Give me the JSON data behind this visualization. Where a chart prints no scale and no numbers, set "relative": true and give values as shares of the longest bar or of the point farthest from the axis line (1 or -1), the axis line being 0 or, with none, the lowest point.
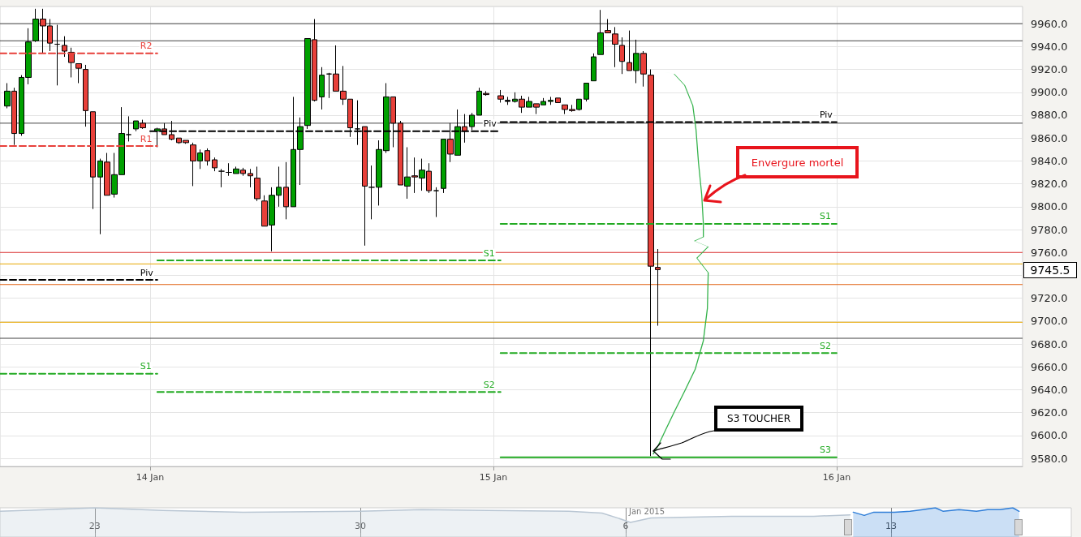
{
  "chart_data": [
    {
      "type": "candlestick",
      "marker": "none",
      "grid": true,
      "xlim": [
        "2015-01-13T13:30",
        "2015-01-16T13:00"
      ],
      "xticks": [
        {
          "value": "2015-01-14",
          "label": "14 Jan"
        },
        {
          "value": "2015-01-15",
          "label": "15 Jan"
        },
        {
          "value": "2015-01-16",
          "label": "16 Jan"
        }
      ],
      "ylim": [
        9573,
        9975
      ],
      "yticks": [
        {
          "value": 9580,
          "label": "9580.0"
        },
        {
          "value": 9600,
          "label": "9600.0"
        },
        {
          "value": 9620,
          "label": "9620.0"
        },
        {
          "value": 9640,
          "label": "9640.0"
        },
        {
          "value": 9660,
          "label": "9660.0"
        },
        {
          "value": 9680,
          "label": "9680.0"
        },
        {
          "value": 9700,
          "label": "9700.0"
        },
        {
          "value": 9720,
          "label": "9720.0"
        },
        {
          "value": 9740,
          "label": null
        },
        {
          "value": 9760,
          "label": "9760.0"
        },
        {
          "value": 9780,
          "label": "9780.0"
        },
        {
          "value": 9800,
          "label": "9800.0"
        },
        {
          "value": 9820,
          "label": "9820.0"
        },
        {
          "value": 9840,
          "label": "9840.0"
        },
        {
          "value": 9860,
          "label": "9860.0"
        },
        {
          "value": 9880,
          "label": "9880.0"
        },
        {
          "value": 9900,
          "label": "9900.0"
        },
        {
          "value": 9920,
          "label": "9920.0"
        },
        {
          "value": 9940,
          "label": "9940.0"
        },
        {
          "value": 9960,
          "label": "9960.0"
        }
      ],
      "x": [
        "2015-01-13T14:00",
        "2015-01-13T14:30",
        "2015-01-13T15:00",
        "2015-01-13T15:30",
        "2015-01-13T16:00",
        "2015-01-13T16:30",
        "2015-01-13T17:00",
        "2015-01-13T17:30",
        "2015-01-13T18:00",
        "2015-01-13T18:30",
        "2015-01-13T19:00",
        "2015-01-13T19:30",
        "2015-01-13T20:00",
        "2015-01-13T20:30",
        "2015-01-13T21:00",
        "2015-01-13T21:30",
        "2015-01-13T22:00",
        "2015-01-13T22:30",
        "2015-01-13T23:00",
        "2015-01-13T23:30",
        "2015-01-14T00:30",
        "2015-01-14T01:00",
        "2015-01-14T01:30",
        "2015-01-14T02:00",
        "2015-01-14T02:30",
        "2015-01-14T03:00",
        "2015-01-14T03:30",
        "2015-01-14T04:00",
        "2015-01-14T04:30",
        "2015-01-14T05:00",
        "2015-01-14T05:30",
        "2015-01-14T06:00",
        "2015-01-14T06:30",
        "2015-01-14T07:00",
        "2015-01-14T07:30",
        "2015-01-14T08:00",
        "2015-01-14T08:30",
        "2015-01-14T09:00",
        "2015-01-14T09:30",
        "2015-01-14T10:00",
        "2015-01-14T10:30",
        "2015-01-14T11:00",
        "2015-01-14T11:30",
        "2015-01-14T12:00",
        "2015-01-14T12:30",
        "2015-01-14T13:00",
        "2015-01-14T13:30",
        "2015-01-14T14:00",
        "2015-01-14T14:30",
        "2015-01-14T15:00",
        "2015-01-14T15:30",
        "2015-01-14T16:00",
        "2015-01-14T16:30",
        "2015-01-14T17:00",
        "2015-01-14T17:30",
        "2015-01-14T18:00",
        "2015-01-14T18:30",
        "2015-01-14T19:00",
        "2015-01-14T19:30",
        "2015-01-14T20:00",
        "2015-01-14T20:30",
        "2015-01-14T21:00",
        "2015-01-14T21:30",
        "2015-01-14T22:00",
        "2015-01-14T22:30",
        "2015-01-14T23:00",
        "2015-01-14T23:30",
        "2015-01-15T00:30",
        "2015-01-15T01:00",
        "2015-01-15T01:30",
        "2015-01-15T02:00",
        "2015-01-15T02:30",
        "2015-01-15T03:00",
        "2015-01-15T03:30",
        "2015-01-15T04:00",
        "2015-01-15T04:30",
        "2015-01-15T05:00",
        "2015-01-15T05:30",
        "2015-01-15T06:00",
        "2015-01-15T06:30",
        "2015-01-15T07:00",
        "2015-01-15T07:30",
        "2015-01-15T08:00",
        "2015-01-15T08:30",
        "2015-01-15T09:00",
        "2015-01-15T09:30",
        "2015-01-15T10:00",
        "2015-01-15T10:30",
        "2015-01-15T11:00",
        "2015-01-15T11:30"
      ],
      "ohlc": [
        [
          9888,
          9908,
          9886,
          9901
        ],
        [
          9901,
          9904,
          9854,
          9864
        ],
        [
          9864,
          9915,
          9862,
          9913
        ],
        [
          9913,
          9956,
          9907,
          9944
        ],
        [
          9945,
          9973,
          9944,
          9964
        ],
        [
          9964,
          9973,
          9934,
          9958
        ],
        [
          9958,
          9964,
          9936,
          9943
        ],
        [
          9942,
          9959,
          9906,
          9942
        ],
        [
          9941,
          9949,
          9931,
          9936
        ],
        [
          9935,
          9939,
          9913,
          9926
        ],
        [
          9925,
          9925,
          9908,
          9921
        ],
        [
          9920,
          9924,
          9870,
          9884
        ],
        [
          9883,
          9883,
          9798,
          9826
        ],
        [
          9826,
          9842,
          9776,
          9840
        ],
        [
          9839,
          9847,
          9810,
          9810
        ],
        [
          9811,
          9847,
          9808,
          9828
        ],
        [
          9828,
          9887,
          9828,
          9864
        ],
        [
          9863,
          9879,
          9857,
          9863
        ],
        [
          9868,
          9875,
          9866,
          9875
        ],
        [
          9873,
          9876,
          9868,
          9869
        ],
        [
          9866,
          9869,
          9852,
          9868
        ],
        [
          9868,
          9873,
          9863,
          9863
        ],
        [
          9863,
          9875,
          9858,
          9859
        ],
        [
          9860,
          9860,
          9855,
          9856
        ],
        [
          9858,
          9858,
          9855,
          9856
        ],
        [
          9854,
          9856,
          9818,
          9840
        ],
        [
          9840,
          9850,
          9833,
          9847
        ],
        [
          9849,
          9851,
          9836,
          9840
        ],
        [
          9841,
          9843,
          9831,
          9834
        ],
        [
          9831,
          9833,
          9817,
          9831
        ],
        [
          9830,
          9838,
          9827,
          9830
        ],
        [
          9829,
          9835,
          9829,
          9833
        ],
        [
          9832,
          9834,
          9827,
          9829
        ],
        [
          9829,
          9833,
          9817,
          9827
        ],
        [
          9825,
          9835,
          9805,
          9807
        ],
        [
          9805,
          9810,
          9783,
          9783
        ],
        [
          9784,
          9817,
          9761,
          9810
        ],
        [
          9810,
          9835,
          9800,
          9817
        ],
        [
          9817,
          9839,
          9789,
          9800
        ],
        [
          9800,
          9896,
          9800,
          9850
        ],
        [
          9850,
          9878,
          9819,
          9870
        ],
        [
          9871,
          9947,
          9868,
          9947
        ],
        [
          9946,
          9964,
          9892,
          9893
        ],
        [
          9896,
          9922,
          9885,
          9915
        ],
        [
          9916,
          9917,
          9895,
          9916
        ],
        [
          9916,
          9941,
          9901,
          9901
        ],
        [
          9901,
          9923,
          9889,
          9894
        ],
        [
          9894,
          9894,
          9861,
          9869
        ],
        [
          9868,
          9893,
          9854,
          9868
        ],
        [
          9870,
          9870,
          9766,
          9818
        ],
        [
          9817,
          9836,
          9789,
          9817
        ],
        [
          9817,
          9858,
          9801,
          9850
        ],
        [
          9849,
          9908,
          9847,
          9896
        ],
        [
          9896,
          9896,
          9852,
          9873
        ],
        [
          9873,
          9875,
          9819,
          9819
        ],
        [
          9818,
          9852,
          9807,
          9826
        ],
        [
          9827,
          9843,
          9812,
          9826
        ],
        [
          9825,
          9842,
          9814,
          9832
        ],
        [
          9831,
          9838,
          9812,
          9814
        ],
        [
          9814,
          9817,
          9791,
          9814
        ],
        [
          9816,
          9859,
          9812,
          9859
        ],
        [
          9859,
          9873,
          9839,
          9846
        ],
        [
          9845,
          9885,
          9845,
          9870
        ],
        [
          9870,
          9881,
          9856,
          9866
        ],
        [
          9870,
          9882,
          9867,
          9880
        ],
        [
          9880,
          9904,
          9880,
          9901
        ],
        [
          9899,
          9901,
          9897,
          9898
        ],
        [
          9897,
          9902,
          9891,
          9894
        ],
        [
          9893,
          9896,
          9889,
          9892
        ],
        [
          9892,
          9900,
          9891,
          9894
        ],
        [
          9894,
          9897,
          9882,
          9887
        ],
        [
          9887,
          9896,
          9887,
          9892
        ],
        [
          9890,
          9890,
          9881,
          9887
        ],
        [
          9889,
          9895,
          9889,
          9892
        ],
        [
          9892,
          9896,
          9889,
          9893
        ],
        [
          9895,
          9895,
          9891,
          9891
        ],
        [
          9889,
          9889,
          9881,
          9885
        ],
        [
          9885,
          9889,
          9883,
          9884
        ],
        [
          9885,
          9894,
          9884,
          9894
        ],
        [
          9894,
          9908,
          9892,
          9908
        ],
        [
          9910,
          9934,
          9910,
          9931
        ],
        [
          9933,
          9972,
          9933,
          9952
        ],
        [
          9954,
          9964,
          9952,
          9952
        ],
        [
          9951,
          9957,
          9922,
          9942
        ],
        [
          9941,
          9948,
          9916,
          9927
        ],
        [
          9926,
          9954,
          9919,
          9919
        ],
        [
          9919,
          9946,
          9908,
          9934
        ],
        [
          9934,
          9936,
          9905,
          9916
        ],
        [
          9915,
          9920,
          9582,
          9748
        ],
        [
          9747,
          9763,
          9696,
          9745
        ]
      ],
      "colors": [
        "#00a000",
        "#e8403a",
        "#00a000",
        "#00a000",
        "#00a000",
        "#e8403a",
        "#e8403a",
        "#000000",
        "#e8403a",
        "#e8403a",
        "#e8403a",
        "#e8403a",
        "#e8403a",
        "#00a000",
        "#e8403a",
        "#00a000",
        "#00a000",
        "#000000",
        "#00a000",
        "#e8403a",
        "#00a000",
        "#e8403a",
        "#e8403a",
        "#e8403a",
        "#e8403a",
        "#e8403a",
        "#00a000",
        "#e8403a",
        "#e8403a",
        "#000000",
        "#000000",
        "#00a000",
        "#e8403a",
        "#e8403a",
        "#e8403a",
        "#e8403a",
        "#00a000",
        "#00a000",
        "#e8403a",
        "#00a000",
        "#00a000",
        "#00a000",
        "#e8403a",
        "#00a000",
        "#000000",
        "#e8403a",
        "#e8403a",
        "#e8403a",
        "#000000",
        "#e8403a",
        "#000000",
        "#00a000",
        "#00a000",
        "#e8403a",
        "#e8403a",
        "#00a000",
        "#e8403a",
        "#00a000",
        "#e8403a",
        "#000000",
        "#00a000",
        "#e8403a",
        "#00a000",
        "#e8403a",
        "#00a000",
        "#00a000",
        "#e8403a",
        "#e8403a",
        "#000000",
        "#00a000",
        "#e8403a",
        "#00a000",
        "#e8403a",
        "#00a000",
        "#00a000",
        "#e8403a",
        "#e8403a",
        "#e8403a",
        "#00a000",
        "#00a000",
        "#00a000",
        "#00a000",
        "#e8403a",
        "#e8403a",
        "#e8403a",
        "#e8403a",
        "#00a000",
        "#e8403a",
        "#e8403a",
        "#e8403a"
      ],
      "series": [
        {
          "type": "line",
          "name": "R2",
          "color": "#e8403a",
          "line_style": "dashed",
          "x": [
            "2015-01-13T13:30",
            "2015-01-14T00:30"
          ],
          "values": [
            9934,
            9934
          ]
        },
        {
          "type": "line",
          "name": "R1",
          "color": "#e8403a",
          "line_style": "dashed",
          "x": [
            "2015-01-13T13:30",
            "2015-01-14T00:30"
          ],
          "values": [
            9853,
            9853
          ]
        },
        {
          "type": "line",
          "name": "Piv",
          "color": "#000000",
          "line_style": "dashed",
          "x": [
            "2015-01-13T13:30",
            "2015-01-14T00:30"
          ],
          "values": [
            9736,
            9736
          ]
        },
        {
          "type": "line",
          "name": "S1",
          "color": "#22aa22",
          "line_style": "dashed",
          "x": [
            "2015-01-13T13:30",
            "2015-01-14T00:30"
          ],
          "values": [
            9654,
            9654
          ]
        },
        {
          "type": "line",
          "name": "Piv",
          "color": "#000000",
          "line_style": "dashed",
          "x": [
            "2015-01-14T00:00",
            "2015-01-15T00:30"
          ],
          "values": [
            9866,
            9866
          ]
        },
        {
          "type": "line",
          "name": "S1",
          "color": "#22aa22",
          "line_style": "dashed",
          "x": [
            "2015-01-14T00:30",
            "2015-01-15T00:30"
          ],
          "values": [
            9753,
            9753
          ]
        },
        {
          "type": "line",
          "name": "S2",
          "color": "#22aa22",
          "line_style": "dashed",
          "x": [
            "2015-01-14T00:30",
            "2015-01-15T00:30"
          ],
          "values": [
            9638,
            9638
          ]
        },
        {
          "type": "line",
          "name": "Piv",
          "color": "#000000",
          "line_style": "dashed",
          "x": [
            "2015-01-15T00:30",
            "2015-01-16T00:00"
          ],
          "values": [
            9874,
            9874
          ]
        },
        {
          "type": "line",
          "name": "S1",
          "color": "#22aa22",
          "line_style": "dashed",
          "x": [
            "2015-01-15T00:30",
            "2015-01-16T00:00"
          ],
          "values": [
            9785,
            9785
          ]
        },
        {
          "type": "line",
          "name": "S2",
          "color": "#22aa22",
          "line_style": "dashed",
          "x": [
            "2015-01-15T00:30",
            "2015-01-16T00:00"
          ],
          "values": [
            9672,
            9672
          ]
        },
        {
          "type": "line",
          "name": "S3",
          "color": "#22aa22",
          "line_style": "solid",
          "x": [
            "2015-01-15T00:30",
            "2015-01-16T00:00"
          ],
          "values": [
            9581,
            9581
          ]
        }
      ],
      "ref_lines": [
        {
          "axis": "y",
          "value": 9960,
          "color": "#444444"
        },
        {
          "axis": "y",
          "value": 9945,
          "color": "#444444"
        },
        {
          "axis": "y",
          "value": 9873,
          "color": "#444444"
        },
        {
          "axis": "y",
          "value": 9760,
          "color": "#e03030"
        },
        {
          "axis": "y",
          "value": 9750,
          "color": "#e8a800"
        },
        {
          "axis": "y",
          "value": 9732,
          "color": "#e06010"
        },
        {
          "axis": "y",
          "value": 9699,
          "color": "#e8a800"
        },
        {
          "axis": "y",
          "value": 9685,
          "color": "#444444"
        }
      ],
      "annotations": [
        "Envergure mortel",
        "S3 TOUCHER",
        "9745.5"
      ]
    },
    {
      "type": "area",
      "relative": true,
      "grid": "x",
      "xlim": [
        "2014-12-20T12:00",
        "2015-01-17T18:00"
      ],
      "xticks": [
        {
          "value": "2014-12-23",
          "label": "23"
        },
        {
          "value": "2014-12-30",
          "label": "30"
        },
        {
          "value": "2015-01-06",
          "label": "6"
        },
        {
          "value": "2015-01-13",
          "label": "13"
        }
      ],
      "annotations": [
        "Jan 2015"
      ],
      "series": [
        {
          "color": "#b9c6d3",
          "x": [
            "2014-12-20T12:00",
            "2014-12-21T18:00",
            "2014-12-23T00:00",
            "2014-12-24T19:00",
            "2014-12-26T22:00",
            "2014-12-30T00:00",
            "2014-12-31T15:00",
            "2015-01-02T09:00",
            "2015-01-04T12:00",
            "2015-01-05T09:00",
            "2015-01-05T19:00",
            "2015-01-06T03:00",
            "2015-01-06T16:00",
            "2015-01-08T19:00",
            "2015-01-10T23:00",
            "2015-01-11T22:00"
          ],
          "values": [
            0.88,
            0.94,
            1,
            0.91,
            0.85,
            0.88,
            0.94,
            0.91,
            0.88,
            0.82,
            0.65,
            0.5,
            0.65,
            0.71,
            0.71,
            0.76
          ]
        },
        {
          "color": "#2f7ed8",
          "x": [
            "2015-01-12T00:00",
            "2015-01-12T07:00",
            "2015-01-12T13:00",
            "2015-01-13T02:00",
            "2015-01-13T12:00",
            "2015-01-13T20:00",
            "2015-01-14T04:00",
            "2015-01-14T09:00",
            "2015-01-14T19:00",
            "2015-01-15T06:00",
            "2015-01-15T13:00",
            "2015-01-15T21:00",
            "2015-01-16T05:00",
            "2015-01-16T09:00"
          ],
          "values": [
            0.85,
            0.74,
            0.85,
            0.85,
            0.88,
            0.94,
            1,
            0.88,
            0.94,
            0.88,
            0.94,
            0.94,
            1,
            0.88
          ]
        }
      ]
    }
  ]
}
